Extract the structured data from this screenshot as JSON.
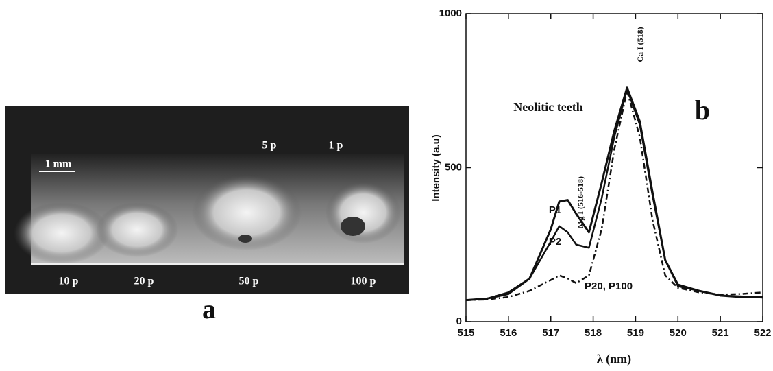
{
  "photo": {
    "panel_label": "a",
    "scale_bar": "1 mm",
    "top_labels": [
      "5 p",
      "1 p"
    ],
    "bottom_labels": [
      "10 p",
      "20 p",
      "50 p",
      "100 p"
    ]
  },
  "chart_data": {
    "type": "line",
    "panel_label": "b",
    "title": "Neolitic teeth",
    "x_label": "λ (nm)",
    "y_label": "Intensity (a.u)",
    "annotations": [
      "Ca I (518)",
      "Mg I (516-518)"
    ],
    "x": [
      515,
      515.5,
      516,
      516.5,
      517,
      517.2,
      517.4,
      517.6,
      517.9,
      518.2,
      518.5,
      518.8,
      519.1,
      519.4,
      519.7,
      520,
      520.5,
      521,
      521.5,
      522
    ],
    "series": [
      {
        "name": "P1",
        "color": "#111111",
        "dash": "solid",
        "values": [
          70,
          75,
          90,
          140,
          300,
          390,
          395,
          350,
          290,
          450,
          620,
          760,
          650,
          420,
          200,
          120,
          100,
          85,
          80,
          80
        ]
      },
      {
        "name": "P2",
        "color": "#111111",
        "dash": "solid",
        "values": [
          70,
          75,
          95,
          140,
          260,
          310,
          290,
          250,
          240,
          400,
          600,
          755,
          640,
          410,
          200,
          115,
          100,
          85,
          82,
          78
        ]
      },
      {
        "name": "P20, P100",
        "color": "#111111",
        "dash": "dashdot",
        "values": [
          70,
          72,
          80,
          100,
          135,
          150,
          140,
          125,
          150,
          300,
          560,
          750,
          600,
          330,
          150,
          110,
          95,
          88,
          90,
          95
        ]
      }
    ],
    "xlim": [
      515,
      522
    ],
    "xticks": [
      515,
      516,
      517,
      518,
      519,
      520,
      521,
      522
    ],
    "ylim": [
      0,
      1000
    ],
    "yticks": [
      0,
      500,
      1000
    ],
    "grid": false
  }
}
